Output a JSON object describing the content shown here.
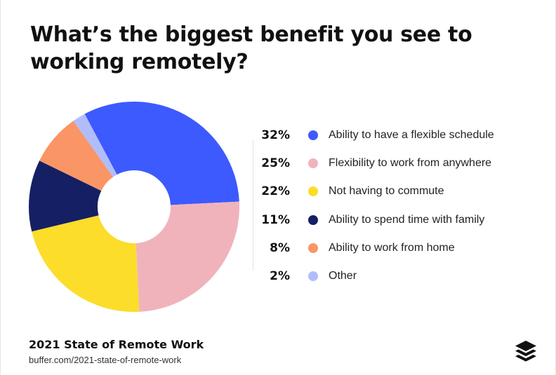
{
  "title": "What’s the biggest benefit you see to working remotely?",
  "chart_data": {
    "type": "pie",
    "donut": true,
    "categories": [
      "Ability to have a flexible schedule",
      "Flexibility to work from anywhere",
      "Not having to commute",
      "Ability to spend time with family",
      "Ability to work from home",
      "Other"
    ],
    "values": [
      32,
      25,
      22,
      11,
      8,
      2
    ],
    "value_labels": [
      "32%",
      "25%",
      "22%",
      "11%",
      "8%",
      "2%"
    ],
    "colors": [
      "#3d5afe",
      "#f0b3bc",
      "#fbdd2a",
      "#142063",
      "#fa9566",
      "#b1bdfb"
    ],
    "legend_position": "right"
  },
  "footer": {
    "title": "2021 State of Remote Work",
    "url": "buffer.com/2021-state-of-remote-work"
  },
  "logo": {
    "icon": "buffer-stack-logo",
    "color": "#111111"
  }
}
